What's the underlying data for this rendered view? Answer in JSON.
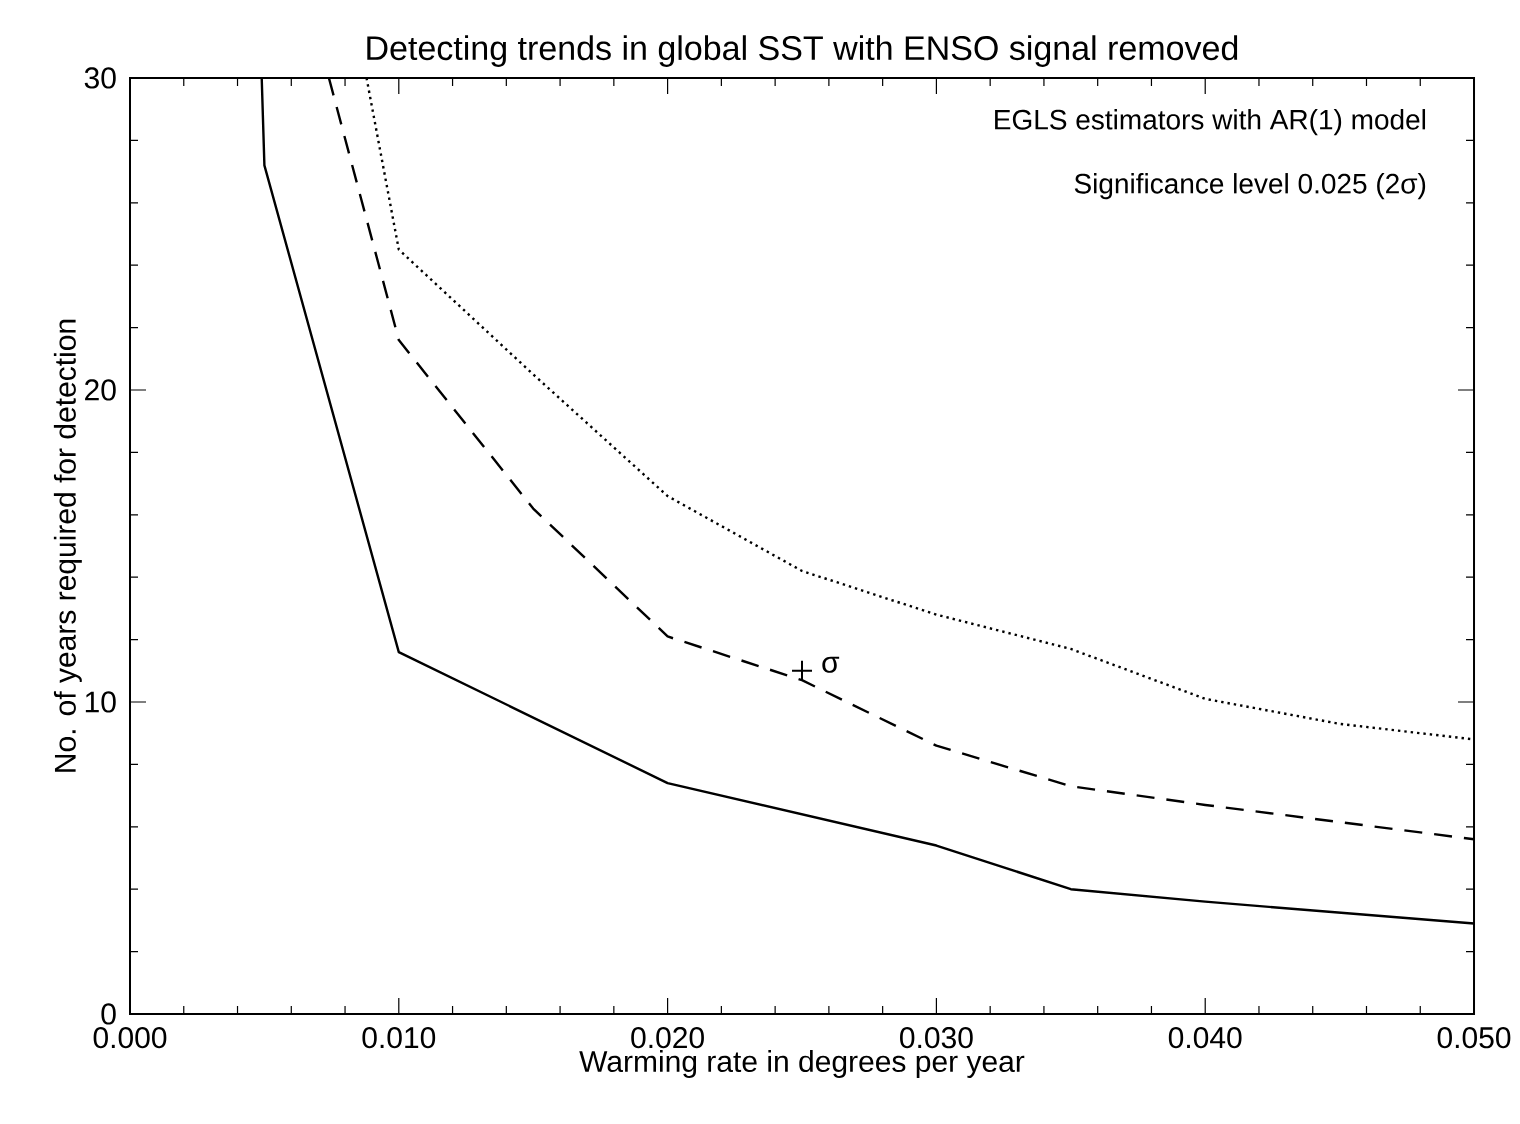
{
  "chart_data": {
    "type": "line",
    "title": "Detecting trends in global SST with ENSO signal removed",
    "xlabel": "Warming rate in degrees per year",
    "ylabel": "No. of years required for detection",
    "xlim": [
      0,
      0.05
    ],
    "ylim": [
      0,
      30
    ],
    "xticks": [
      {
        "value": 0,
        "label": "0.000"
      },
      {
        "value": 0.01,
        "label": "0.010"
      },
      {
        "value": 0.02,
        "label": "0.020"
      },
      {
        "value": 0.03,
        "label": "0.030"
      },
      {
        "value": 0.04,
        "label": "0.040"
      },
      {
        "value": 0.05,
        "label": "0.050"
      }
    ],
    "yticks": [
      0,
      10,
      20,
      30
    ],
    "grid": false,
    "annotations": [
      "EGLS estimators with AR(1) model",
      "Significance level 0.025 (2σ)",
      {
        "text": "σ",
        "x": 0.025,
        "y": 11
      }
    ],
    "series": [
      {
        "color": "#000000",
        "line_style": "solid",
        "marker": "none",
        "x": [
          0.0049,
          0.005,
          0.01,
          0.02,
          0.03,
          0.035,
          0.04,
          0.05
        ],
        "values": [
          30,
          27.2,
          11.6,
          7.4,
          5.4,
          4.0,
          3.6,
          2.9
        ]
      },
      {
        "color": "#000000",
        "line_style": "dashed",
        "marker": "none",
        "x": [
          0.0074,
          0.01,
          0.015,
          0.02,
          0.025,
          0.03,
          0.035,
          0.04,
          0.05
        ],
        "values": [
          30,
          21.6,
          16.2,
          12.1,
          10.7,
          8.6,
          7.3,
          6.7,
          5.6
        ]
      },
      {
        "color": "#000000",
        "line_style": "dotted",
        "marker": "none",
        "x": [
          0.0088,
          0.01,
          0.015,
          0.02,
          0.025,
          0.03,
          0.035,
          0.04,
          0.045,
          0.05
        ],
        "values": [
          30,
          24.5,
          20.5,
          16.6,
          14.2,
          12.8,
          11.7,
          10.1,
          9.3,
          8.8
        ]
      },
      {
        "type": "scatter",
        "color": "#000000",
        "marker": "cross",
        "x": [
          0.025
        ],
        "values": [
          11
        ]
      }
    ]
  }
}
